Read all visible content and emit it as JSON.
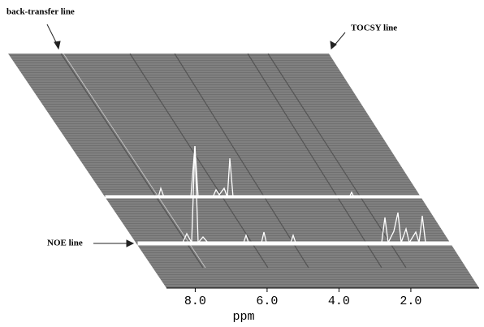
{
  "chart_data": {
    "type": "stacked-trace",
    "annotations": [
      "back-transfer line",
      "TOCSY line",
      "NOE line"
    ],
    "xlabel": "ppm",
    "xlim": [
      8.8,
      0.1
    ],
    "xticks": [
      {
        "value": 8,
        "label": "8.0"
      },
      {
        "value": 6,
        "label": "6.0"
      },
      {
        "value": 4,
        "label": "4.0"
      },
      {
        "value": 2,
        "label": "2.0"
      }
    ]
  }
}
